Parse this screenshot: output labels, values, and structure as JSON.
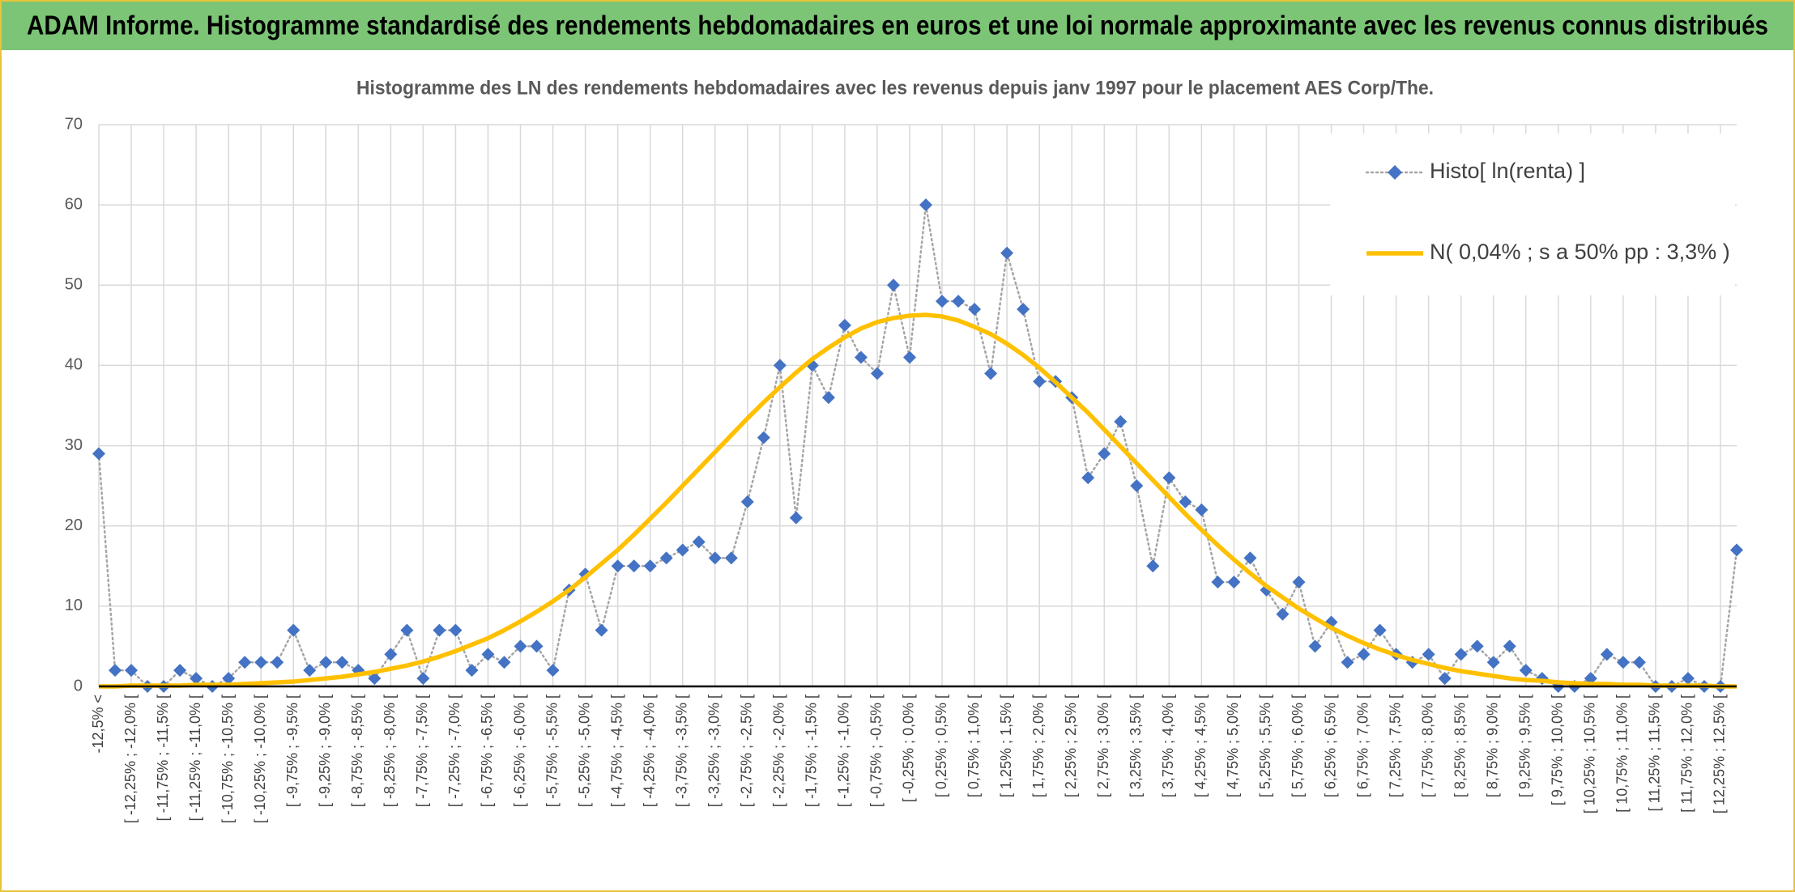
{
  "header": {
    "title": "ADAM Informe. Histogramme standardisé des rendements hebdomadaires en euros et une loi normale approximante avec les revenus connus distribués"
  },
  "chart_data": {
    "type": "line",
    "title": "Histogramme des LN des rendements hebdomadaires avec les revenus depuis janv 1997 pour le placement AES Corp/The.",
    "categories": [
      "-12,5% <",
      null,
      "[ -12,25% ; -12,0% [",
      null,
      "[ -11,75% ; -11,5% [",
      null,
      "[ -11,25% ; -11,0% [",
      null,
      "[ -10,75% ; -10,5% [",
      null,
      "[ -10,25% ; -10,0% [",
      null,
      "[ -9,75% ; -9,5% [",
      null,
      "[ -9,25% ; -9,0% [",
      null,
      "[ -8,75% ; -8,5% [",
      null,
      "[ -8,25% ; -8,0% [",
      null,
      "[ -7,75% ; -7,5% [",
      null,
      "[ -7,25% ; -7,0% [",
      null,
      "[ -6,75% ; -6,5% [",
      null,
      "[ -6,25% ; -6,0% [",
      null,
      "[ -5,75% ; -5,5% [",
      null,
      "[ -5,25% ; -5,0% [",
      null,
      "[ -4,75% ; -4,5% [",
      null,
      "[ -4,25% ; -4,0% [",
      null,
      "[ -3,75% ; -3,5% [",
      null,
      "[ -3,25% ; -3,0% [",
      null,
      "[ -2,75% ; -2,5% [",
      null,
      "[ -2,25% ; -2,0% [",
      null,
      "[ -1,75% ; -1,5% [",
      null,
      "[ -1,25% ; -1,0% [",
      null,
      "[ -0,75% ; -0,5% [",
      null,
      "[ -0,25% ; 0,0% [",
      null,
      "[ 0,25% ; 0,5% [",
      null,
      "[ 0,75% ; 1,0% [",
      null,
      "[ 1,25% ; 1,5% [",
      null,
      "[ 1,75% ; 2,0% [",
      null,
      "[ 2,25% ; 2,5% [",
      null,
      "[ 2,75% ; 3,0% [",
      null,
      "[ 3,25% ; 3,5% [",
      null,
      "[ 3,75% ; 4,0% [",
      null,
      "[ 4,25% ; 4,5% [",
      null,
      "[ 4,75% ; 5,0% [",
      null,
      "[ 5,25% ; 5,5% [",
      null,
      "[ 5,75% ; 6,0% [",
      null,
      "[ 6,25% ; 6,5% [",
      null,
      "[ 6,75% ; 7,0% [",
      null,
      "[ 7,25% ; 7,5% [",
      null,
      "[ 7,75% ; 8,0% [",
      null,
      "[ 8,25% ; 8,5% [",
      null,
      "[ 8,75% ; 9,0% [",
      null,
      "[ 9,25% ; 9,5% [",
      null,
      "[ 9,75% ; 10,0% [",
      null,
      "[ 10,25% ; 10,5% [",
      null,
      "[ 10,75% ; 11,0% [",
      null,
      "[ 11,25% ; 11,5% [",
      null,
      "[ 11,75% ; 12,0% [",
      null,
      "[ 12,25% ; 12,5% [",
      null
    ],
    "series": [
      {
        "name": "Histo[ ln(renta) ]",
        "color": "#4472c4",
        "line_color": "#a6a6a6",
        "line_style": "dotted",
        "marker": "diamond",
        "values": [
          29,
          2,
          2,
          0,
          0,
          2,
          1,
          0,
          1,
          3,
          3,
          3,
          7,
          2,
          3,
          3,
          2,
          1,
          4,
          7,
          1,
          7,
          7,
          2,
          4,
          3,
          5,
          5,
          2,
          12,
          14,
          7,
          15,
          15,
          15,
          16,
          17,
          18,
          16,
          16,
          23,
          31,
          40,
          21,
          40,
          36,
          45,
          41,
          39,
          50,
          41,
          60,
          48,
          48,
          47,
          39,
          54,
          47,
          38,
          38,
          36,
          26,
          29,
          33,
          25,
          15,
          26,
          23,
          22,
          13,
          13,
          16,
          12,
          9,
          13,
          5,
          8,
          3,
          4,
          7,
          4,
          3,
          4,
          1,
          4,
          5,
          3,
          5,
          2,
          1,
          0,
          0,
          1,
          4,
          3,
          3,
          0,
          0,
          1,
          0,
          0,
          17
        ]
      },
      {
        "name": "N( 0,04% ; s a 50% pp : 3,3% )",
        "color": "#ffc000",
        "line_style": "solid",
        "marker": "none",
        "values": [
          0.0,
          0.0,
          0.1,
          0.1,
          0.1,
          0.1,
          0.2,
          0.2,
          0.2,
          0.3,
          0.4,
          0.5,
          0.6,
          0.8,
          1.0,
          1.2,
          1.5,
          1.8,
          2.2,
          2.6,
          3.1,
          3.7,
          4.4,
          5.2,
          6.0,
          7.0,
          8.1,
          9.3,
          10.6,
          12.0,
          13.6,
          15.3,
          17.0,
          18.9,
          20.9,
          22.9,
          25.0,
          27.1,
          29.2,
          31.3,
          33.4,
          35.4,
          37.3,
          39.1,
          40.8,
          42.2,
          43.5,
          44.6,
          45.4,
          45.9,
          46.2,
          46.3,
          46.1,
          45.6,
          44.8,
          43.9,
          42.7,
          41.3,
          39.7,
          37.9,
          36.0,
          34.1,
          32.0,
          29.9,
          27.8,
          25.7,
          23.6,
          21.5,
          19.5,
          17.6,
          15.8,
          14.1,
          12.5,
          11.1,
          9.7,
          8.5,
          7.3,
          6.3,
          5.4,
          4.6,
          3.9,
          3.3,
          2.8,
          2.3,
          1.9,
          1.6,
          1.3,
          1.0,
          0.8,
          0.7,
          0.5,
          0.4,
          0.3,
          0.3,
          0.2,
          0.2,
          0.1,
          0.1,
          0.1,
          0.1,
          0.0,
          0.0
        ]
      }
    ],
    "ylim": [
      0,
      70
    ],
    "yticks": [
      0,
      10,
      20,
      30,
      40,
      50,
      60,
      70
    ],
    "grid": true,
    "legend": "upper right"
  }
}
